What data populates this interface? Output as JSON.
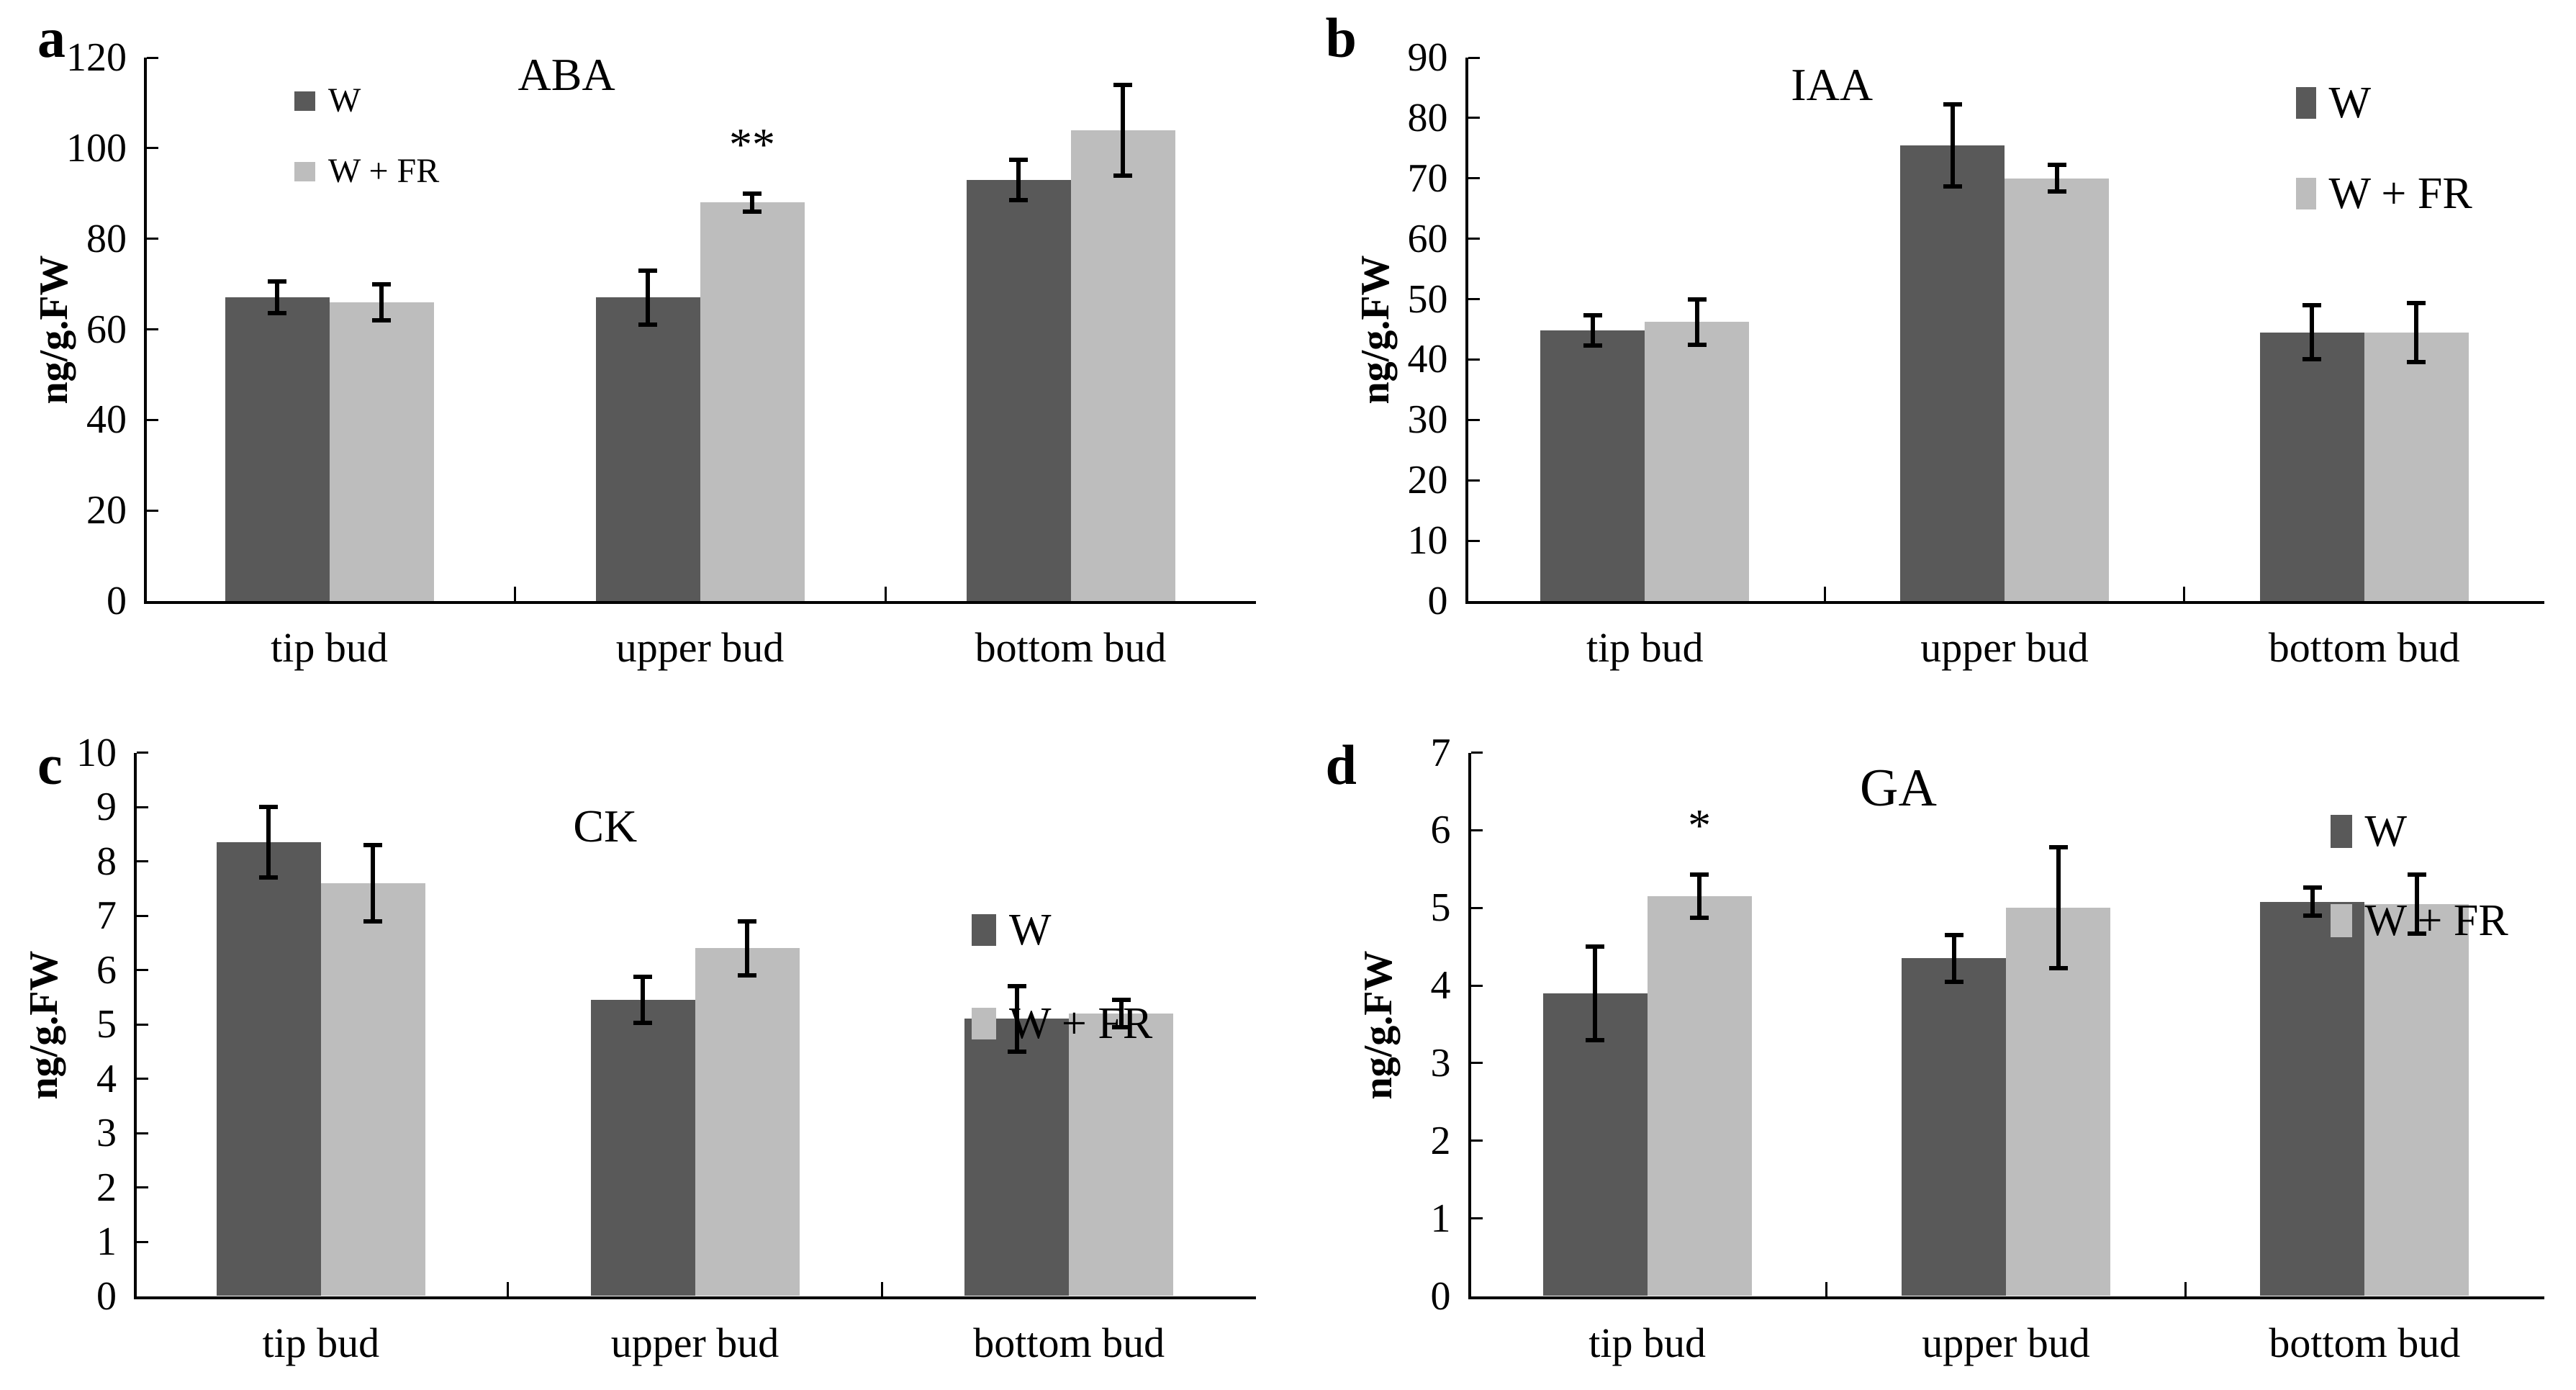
{
  "figure": {
    "background": "#ffffff",
    "series_names": [
      "W",
      "W + FR"
    ],
    "series_colors": {
      "W": "#595959",
      "W + FR": "#bdbdbd"
    }
  },
  "chart_data": [
    {
      "type": "bar",
      "panel_letter": "a",
      "title": "ABA",
      "ylabel": "ng/g.FW",
      "xlabel": "",
      "ylim": [
        0,
        120
      ],
      "ytick_step": 20,
      "yticks": [
        0,
        20,
        40,
        60,
        80,
        100,
        120
      ],
      "categories": [
        "tip bud",
        "upper bud",
        "bottom bud"
      ],
      "series": [
        {
          "name": "W",
          "color": "#595959",
          "values": [
            67,
            67,
            93
          ],
          "errors": [
            3.5,
            6,
            4.5
          ]
        },
        {
          "name": "W + FR",
          "color": "#bdbdbd",
          "values": [
            66,
            88,
            104
          ],
          "errors": [
            4,
            2,
            10
          ]
        }
      ],
      "annotations": [
        {
          "category": "upper bud",
          "series": "W + FR",
          "text": "**"
        }
      ],
      "grid": false,
      "legend_position": "inside-upper-left",
      "layout": {
        "plot_left": 200,
        "title_frac": 0.38,
        "title_top": 72,
        "title_font": 64,
        "legend": {
          "left": 409,
          "top": 116,
          "row_gap": 50,
          "font": 48,
          "sw": 29,
          "sh": 27
        }
      }
    },
    {
      "type": "bar",
      "panel_letter": "b",
      "title": "IAA",
      "ylabel": "ng/g.FW",
      "xlabel": "",
      "ylim": [
        0,
        90
      ],
      "ytick_step": 10,
      "yticks": [
        0,
        10,
        20,
        30,
        40,
        50,
        60,
        70,
        80,
        90
      ],
      "categories": [
        "tip bud",
        "upper bud",
        "bottom bud"
      ],
      "series": [
        {
          "name": "W",
          "color": "#595959",
          "values": [
            44.8,
            75.5,
            44.5
          ],
          "errors": [
            2.5,
            6.8,
            4.5
          ]
        },
        {
          "name": "W + FR",
          "color": "#bdbdbd",
          "values": [
            46.2,
            70,
            44.5
          ],
          "errors": [
            3.8,
            2.2,
            4.9
          ]
        }
      ],
      "annotations": [],
      "grid": false,
      "legend_position": "inside-upper-right",
      "layout": {
        "plot_left": 246,
        "title_frac": 0.34,
        "title_top": 86,
        "title_font": 64,
        "legend": {
          "left": 1400,
          "top": 112,
          "row_gap": 64,
          "font": 62,
          "sw": 28,
          "sh": 44
        }
      }
    },
    {
      "type": "bar",
      "panel_letter": "c",
      "title": "CK",
      "ylabel": "ng/g.FW",
      "xlabel": "",
      "ylim": [
        0,
        10
      ],
      "ytick_step": 1,
      "yticks": [
        0,
        1,
        2,
        3,
        4,
        5,
        6,
        7,
        8,
        9,
        10
      ],
      "categories": [
        "tip bud",
        "upper bud",
        "bottom bud"
      ],
      "series": [
        {
          "name": "W",
          "color": "#595959",
          "values": [
            8.35,
            5.45,
            5.1
          ],
          "errors": [
            0.65,
            0.42,
            0.6
          ]
        },
        {
          "name": "W + FR",
          "color": "#bdbdbd",
          "values": [
            7.6,
            6.4,
            5.2
          ],
          "errors": [
            0.7,
            0.5,
            0.25
          ]
        }
      ],
      "annotations": [],
      "grid": false,
      "legend_position": "inside-middle-right",
      "layout": {
        "plot_left": 186,
        "title_frac": 0.42,
        "title_top": 150,
        "title_font": 64,
        "legend": {
          "left": 1350,
          "top": 295,
          "row_gap": 68,
          "font": 62,
          "sw": 34,
          "sh": 44
        }
      }
    },
    {
      "type": "bar",
      "panel_letter": "d",
      "title": "GA",
      "ylabel": "ng/g.FW",
      "xlabel": "",
      "ylim": [
        0,
        7
      ],
      "ytick_step": 1,
      "yticks": [
        0,
        1,
        2,
        3,
        4,
        5,
        6,
        7
      ],
      "categories": [
        "tip bud",
        "upper bud",
        "bottom bud"
      ],
      "series": [
        {
          "name": "W",
          "color": "#595959",
          "values": [
            3.9,
            4.35,
            5.08
          ],
          "errors": [
            0.6,
            0.3,
            0.18
          ]
        },
        {
          "name": "W + FR",
          "color": "#bdbdbd",
          "values": [
            5.15,
            5.0,
            5.05
          ],
          "errors": [
            0.28,
            0.78,
            0.38
          ]
        }
      ],
      "annotations": [
        {
          "category": "tip bud",
          "series": "W + FR",
          "text": "*"
        }
      ],
      "grid": false,
      "legend_position": "inside-upper-right",
      "layout": {
        "plot_left": 250,
        "title_frac": 0.4,
        "title_top": 92,
        "title_font": 74,
        "legend": {
          "left": 1448,
          "top": 158,
          "row_gap": 62,
          "font": 62,
          "sw": 30,
          "sh": 46
        }
      }
    }
  ]
}
